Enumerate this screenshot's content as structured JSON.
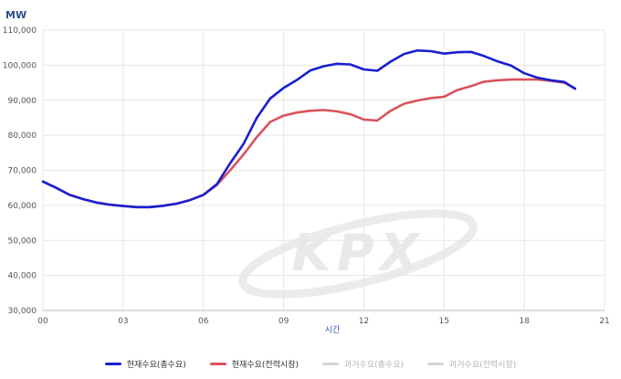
{
  "chart_data": {
    "type": "line",
    "ylabel": "MW",
    "xlabel": "시간",
    "ylim": [
      30000,
      110000
    ],
    "yticks": [
      30000,
      40000,
      50000,
      60000,
      70000,
      80000,
      90000,
      100000,
      110000
    ],
    "ytick_labels": [
      "30,000",
      "40,000",
      "50,000",
      "60,000",
      "70,000",
      "80,000",
      "90,000",
      "100,000",
      "110,000"
    ],
    "xlim": [
      0,
      21
    ],
    "xticks": [
      0,
      3,
      6,
      9,
      12,
      15,
      18,
      21
    ],
    "xtick_labels": [
      "00",
      "03",
      "06",
      "09",
      "12",
      "15",
      "18",
      "21"
    ],
    "grid": true,
    "legend_position": "bottom",
    "series": [
      {
        "name": "현재수요(총수요)",
        "color": "#1a1fcf",
        "x": [
          0,
          0.5,
          1,
          1.5,
          2,
          2.5,
          3,
          3.5,
          4,
          4.5,
          5,
          5.5,
          6,
          6.5,
          7,
          7.5,
          8,
          8.5,
          9,
          9.5,
          10,
          10.5,
          11,
          11.5,
          12,
          12.5,
          13,
          13.5,
          14,
          14.5,
          15,
          15.5,
          16,
          16.5,
          17,
          17.5,
          18,
          18.5,
          19,
          19.5,
          19.9
        ],
        "y": [
          66800,
          65000,
          63000,
          61800,
          60800,
          60200,
          59800,
          59500,
          59500,
          59900,
          60500,
          61500,
          63000,
          66000,
          72000,
          77500,
          85000,
          90500,
          93500,
          95800,
          98500,
          99700,
          100400,
          100200,
          98800,
          98400,
          101000,
          103200,
          104200,
          104000,
          103300,
          103700,
          103800,
          102600,
          101100,
          99900,
          97700,
          96400,
          95700,
          95200,
          93300
        ]
      },
      {
        "name": "현재수요(전력시장)",
        "color": "#d9535c",
        "x": [
          0,
          0.5,
          1,
          1.5,
          2,
          2.5,
          3,
          3.5,
          4,
          4.5,
          5,
          5.5,
          6,
          6.5,
          7,
          7.5,
          8,
          8.5,
          9,
          9.5,
          10,
          10.5,
          11,
          11.5,
          12,
          12.5,
          13,
          13.5,
          14,
          14.5,
          15,
          15.5,
          16,
          16.5,
          17,
          17.5,
          18,
          18.5,
          19,
          19.5,
          19.9
        ],
        "y": [
          66800,
          65000,
          63000,
          61800,
          60800,
          60200,
          59800,
          59500,
          59500,
          59900,
          60500,
          61500,
          63000,
          65800,
          70000,
          74500,
          79500,
          83800,
          85600,
          86500,
          87000,
          87200,
          86800,
          86000,
          84500,
          84200,
          87000,
          89000,
          89900,
          90600,
          91000,
          92900,
          94000,
          95300,
          95700,
          95900,
          95900,
          95900,
          95500,
          95000,
          93300
        ]
      },
      {
        "name": "과거수요(총수요)",
        "color": "#d6d6d6",
        "x": [],
        "y": []
      },
      {
        "name": "과거수요(전력시장)",
        "color": "#d6d6d6",
        "x": [],
        "y": []
      }
    ]
  },
  "watermark": {
    "logo_text": "KPX"
  }
}
